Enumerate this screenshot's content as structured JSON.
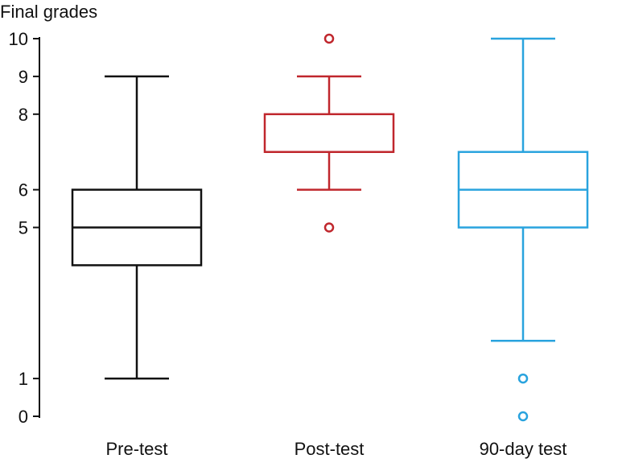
{
  "chart_data": {
    "type": "boxplot",
    "title": "",
    "ylabel": "Final grades",
    "xlabel": "",
    "ylim": [
      0,
      10
    ],
    "yticks": [
      0,
      1,
      5,
      6,
      8,
      9,
      10
    ],
    "grid": false,
    "legend": "none",
    "categories": [
      "Pre-test",
      "Post-test",
      "90-day test"
    ],
    "series": [
      {
        "name": "Pre-test",
        "color": "#111111",
        "whisker_low": 1,
        "q1": 4,
        "median": 5,
        "q3": 6,
        "whisker_high": 9,
        "outliers": []
      },
      {
        "name": "Post-test",
        "color": "#c0272d",
        "whisker_low": 6,
        "q1": 7,
        "median": 7,
        "q3": 8,
        "whisker_high": 9,
        "outliers": [
          5,
          10
        ]
      },
      {
        "name": "90-day test",
        "color": "#29a3de",
        "whisker_low": 2,
        "q1": 5,
        "median": 6,
        "q3": 7,
        "whisker_high": 10,
        "outliers": [
          0,
          1
        ]
      }
    ]
  }
}
